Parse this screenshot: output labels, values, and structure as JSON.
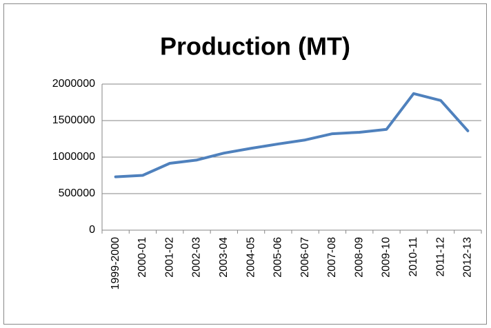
{
  "chart_data": {
    "type": "line",
    "title": "Production (MT)",
    "categories": [
      "1999-2000",
      "2000-01",
      "2001-02",
      "2002-03",
      "2003-04",
      "2004-05",
      "2005-06",
      "2006-07",
      "2007-08",
      "2008-09",
      "2009-10",
      "2010-11",
      "2011-12",
      "2012-13"
    ],
    "series": [
      {
        "name": "Production (MT)",
        "color": "#4f81bd",
        "values": [
          730000,
          750000,
          915000,
          960000,
          1055000,
          1120000,
          1180000,
          1235000,
          1320000,
          1340000,
          1380000,
          1870000,
          1775000,
          1360000
        ]
      }
    ],
    "ylim": [
      0,
      2000000
    ],
    "yticks": [
      0,
      500000,
      1000000,
      1500000,
      2000000
    ],
    "grid": true
  }
}
